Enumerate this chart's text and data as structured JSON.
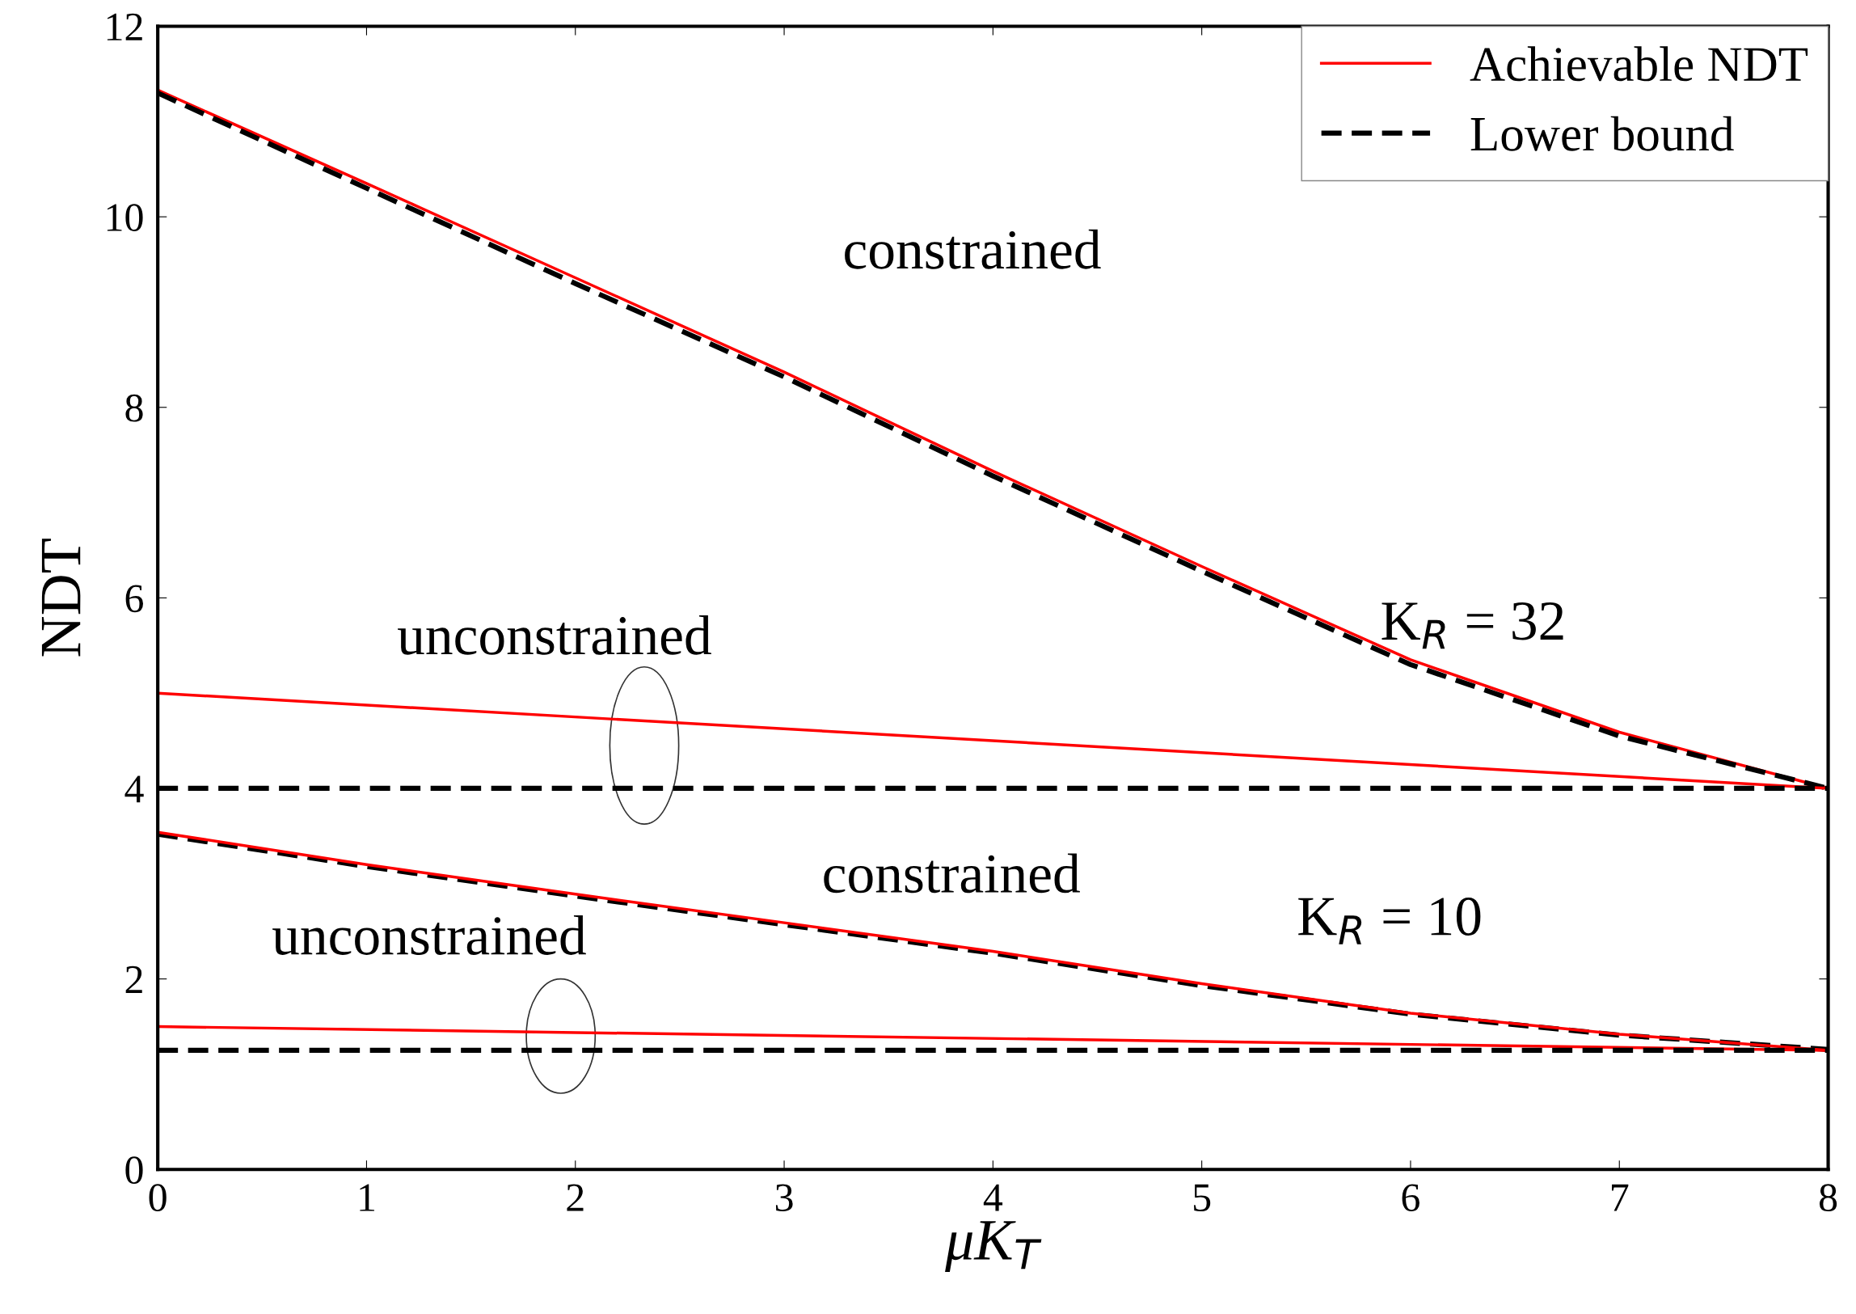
{
  "chart_data": {
    "type": "line",
    "xlabel": "μK$_{T}$",
    "ylabel": "NDT",
    "xlim": [
      0,
      8
    ],
    "ylim": [
      0,
      12
    ],
    "xticks": [
      0,
      1,
      2,
      3,
      4,
      5,
      6,
      7,
      8
    ],
    "yticks": [
      0,
      2,
      4,
      6,
      8,
      10,
      12
    ],
    "grid": false,
    "legend": "top right",
    "marker": "none",
    "series": [
      {
        "name": "Achievable NDT",
        "color": "#ff0000",
        "line_style": "solid",
        "x": [
          0,
          1,
          2,
          3,
          4,
          5,
          6,
          7,
          8
        ],
        "values": [
          11.33,
          10.35,
          9.36,
          8.37,
          7.33,
          6.33,
          5.35,
          4.59,
          4.0
        ]
      },
      {
        "name": "Lower bound",
        "color": "#000000",
        "line_style": "dashed",
        "x": [
          0,
          1,
          2,
          3,
          4,
          5,
          6,
          7,
          8
        ],
        "values": [
          11.3,
          10.3,
          9.3,
          8.32,
          7.28,
          6.28,
          5.3,
          4.55,
          4.0
        ]
      },
      {
        "color": "#ff0000",
        "line_style": "solid",
        "x": [
          0,
          8
        ],
        "values": [
          5.0,
          4.0
        ]
      },
      {
        "color": "#000000",
        "line_style": "dashed",
        "x": [
          0,
          8
        ],
        "values": [
          4.0,
          4.0
        ]
      },
      {
        "color": "#000000",
        "line_style": "dashed",
        "x": [
          0,
          1,
          2,
          3,
          4,
          5,
          6,
          7,
          8
        ],
        "values": [
          3.52,
          3.18,
          2.87,
          2.57,
          2.27,
          1.93,
          1.63,
          1.41,
          1.26
        ]
      },
      {
        "color": "#ff0000",
        "line_style": "solid",
        "x": [
          0,
          1,
          2,
          3,
          4,
          5,
          6,
          7,
          8
        ],
        "values": [
          3.54,
          3.2,
          2.89,
          2.59,
          2.29,
          1.95,
          1.64,
          1.42,
          1.25
        ]
      },
      {
        "color": "#ff0000",
        "line_style": "solid",
        "x": [
          0,
          8
        ],
        "values": [
          1.5,
          1.25
        ]
      },
      {
        "color": "#000000",
        "line_style": "dashed",
        "x": [
          0,
          8
        ],
        "values": [
          1.25,
          1.25
        ]
      }
    ],
    "annotations": [
      "constrained",
      "unconstrained",
      "K$_{R}$ = 32",
      "constrained",
      "K$_{R}$ = 10",
      "unconstrained"
    ]
  }
}
